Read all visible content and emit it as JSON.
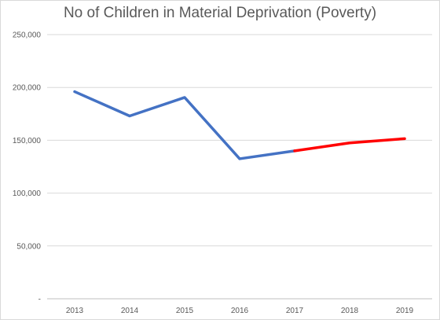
{
  "chart_data": {
    "type": "line",
    "title": "No of Children in Material Deprivation (Poverty)",
    "categories": [
      "2013",
      "2014",
      "2015",
      "2016",
      "2017",
      "2018",
      "2019"
    ],
    "series": [
      {
        "values": [
          196000,
          173000,
          190500,
          132500,
          140000,
          null,
          null
        ],
        "color": "#4472C4"
      },
      {
        "values": [
          null,
          null,
          null,
          null,
          140000,
          147500,
          151500
        ],
        "color": "#FF0000"
      }
    ],
    "ylim": [
      0,
      250000
    ],
    "yticks": [
      "-",
      "50,000",
      "100,000",
      "150,000",
      "200,000",
      "250,000"
    ],
    "grid": true
  }
}
